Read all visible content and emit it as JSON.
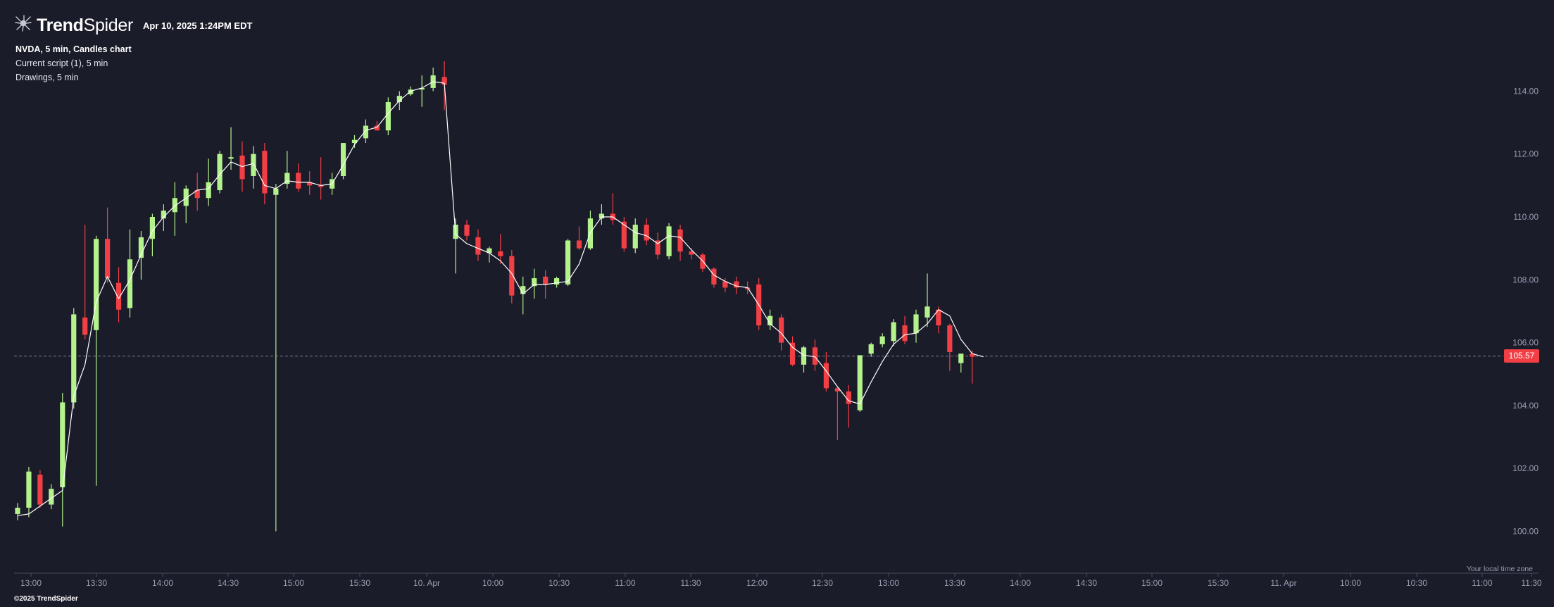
{
  "header": {
    "brand_trend": "Trend",
    "brand_spider": "Spider",
    "timestamp": "Apr 10, 2025 1:24PM EDT"
  },
  "legend": {
    "title": "NVDA, 5 min, Candles chart",
    "script": "Current script (1), 5 min",
    "drawings": "Drawings, 5 min"
  },
  "footer": {
    "copyright": "©2025 TrendSpider",
    "timezone_note": "Your local time zone"
  },
  "colors": {
    "background": "#1b1c2a",
    "up_candle": "#b4f28c",
    "down_candle": "#f23f45",
    "ma_line": "#ffffff",
    "axis_text": "#9a9bb0",
    "last_price_tag": "#f23f45"
  },
  "icons": {
    "logo": "spider-logo-icon"
  },
  "chart_data": {
    "type": "candlestick",
    "symbol": "NVDA",
    "interval": "5 min",
    "ylim": [
      99.5,
      115.0
    ],
    "y_ticks": [
      "100.00",
      "102.00",
      "104.00",
      "106.00",
      "108.00",
      "110.00",
      "112.00",
      "114.00"
    ],
    "x_ticks": [
      "13:00",
      "13:30",
      "14:00",
      "14:30",
      "15:00",
      "15:30",
      "10. Apr",
      "10:00",
      "10:30",
      "11:00",
      "11:30",
      "12:00",
      "12:30",
      "13:00",
      "13:30",
      "14:00",
      "14:30",
      "15:00",
      "15:30",
      "11. Apr",
      "10:00",
      "10:30",
      "11:00",
      "11:30"
    ],
    "last_price": "105.57",
    "candles": [
      {
        "o": 100.55,
        "h": 100.9,
        "l": 100.35,
        "c": 100.75
      },
      {
        "o": 100.75,
        "h": 102.05,
        "l": 100.45,
        "c": 101.9
      },
      {
        "o": 101.8,
        "h": 101.95,
        "l": 100.75,
        "c": 100.85
      },
      {
        "o": 100.85,
        "h": 101.5,
        "l": 100.7,
        "c": 101.35
      },
      {
        "o": 101.4,
        "h": 104.4,
        "l": 100.15,
        "c": 104.1
      },
      {
        "o": 104.1,
        "h": 107.1,
        "l": 103.9,
        "c": 106.9
      },
      {
        "o": 106.8,
        "h": 109.75,
        "l": 106.1,
        "c": 106.25
      },
      {
        "o": 106.4,
        "h": 109.4,
        "l": 101.45,
        "c": 109.3
      },
      {
        "o": 109.3,
        "h": 110.3,
        "l": 107.9,
        "c": 108.05
      },
      {
        "o": 107.9,
        "h": 108.4,
        "l": 106.65,
        "c": 107.05
      },
      {
        "o": 107.1,
        "h": 109.6,
        "l": 106.8,
        "c": 108.65
      },
      {
        "o": 108.7,
        "h": 109.55,
        "l": 108.0,
        "c": 109.35
      },
      {
        "o": 109.3,
        "h": 110.1,
        "l": 108.75,
        "c": 110.0
      },
      {
        "o": 109.95,
        "h": 110.4,
        "l": 109.55,
        "c": 110.2
      },
      {
        "o": 110.15,
        "h": 111.1,
        "l": 109.4,
        "c": 110.6
      },
      {
        "o": 110.35,
        "h": 111.0,
        "l": 109.8,
        "c": 110.9
      },
      {
        "o": 110.85,
        "h": 111.4,
        "l": 110.2,
        "c": 110.6
      },
      {
        "o": 110.6,
        "h": 111.85,
        "l": 110.35,
        "c": 111.1
      },
      {
        "o": 110.85,
        "h": 112.1,
        "l": 110.75,
        "c": 112.0
      },
      {
        "o": 111.85,
        "h": 112.85,
        "l": 111.5,
        "c": 111.9
      },
      {
        "o": 111.95,
        "h": 112.4,
        "l": 110.8,
        "c": 111.2
      },
      {
        "o": 111.3,
        "h": 112.25,
        "l": 110.9,
        "c": 112.0
      },
      {
        "o": 112.1,
        "h": 112.35,
        "l": 110.4,
        "c": 110.75
      },
      {
        "o": 110.7,
        "h": 111.05,
        "l": 100.0,
        "c": 110.9
      },
      {
        "o": 111.05,
        "h": 112.1,
        "l": 110.9,
        "c": 111.4
      },
      {
        "o": 111.4,
        "h": 111.7,
        "l": 110.8,
        "c": 110.9
      },
      {
        "o": 111.1,
        "h": 111.45,
        "l": 110.7,
        "c": 111.0
      },
      {
        "o": 111.0,
        "h": 111.9,
        "l": 110.55,
        "c": 110.95
      },
      {
        "o": 110.9,
        "h": 111.4,
        "l": 110.7,
        "c": 111.2
      },
      {
        "o": 111.3,
        "h": 112.35,
        "l": 111.2,
        "c": 112.35
      },
      {
        "o": 112.35,
        "h": 112.6,
        "l": 112.2,
        "c": 112.45
      },
      {
        "o": 112.5,
        "h": 113.1,
        "l": 112.35,
        "c": 112.9
      },
      {
        "o": 112.9,
        "h": 113.05,
        "l": 112.75,
        "c": 112.75
      },
      {
        "o": 112.75,
        "h": 113.8,
        "l": 112.6,
        "c": 113.65
      },
      {
        "o": 113.65,
        "h": 114.0,
        "l": 113.4,
        "c": 113.85
      },
      {
        "o": 113.9,
        "h": 114.15,
        "l": 113.85,
        "c": 114.05
      },
      {
        "o": 114.05,
        "h": 114.5,
        "l": 113.5,
        "c": 114.1
      },
      {
        "o": 114.1,
        "h": 114.75,
        "l": 114.0,
        "c": 114.5
      },
      {
        "o": 114.45,
        "h": 114.95,
        "l": 113.4,
        "c": 114.2
      },
      {
        "o": 109.3,
        "h": 109.95,
        "l": 108.2,
        "c": 109.75
      },
      {
        "o": 109.75,
        "h": 109.9,
        "l": 109.25,
        "c": 109.4
      },
      {
        "o": 109.35,
        "h": 109.6,
        "l": 108.6,
        "c": 108.8
      },
      {
        "o": 108.85,
        "h": 109.05,
        "l": 108.55,
        "c": 109.0
      },
      {
        "o": 108.9,
        "h": 109.45,
        "l": 108.5,
        "c": 108.75
      },
      {
        "o": 108.75,
        "h": 108.95,
        "l": 107.25,
        "c": 107.5
      },
      {
        "o": 107.55,
        "h": 108.1,
        "l": 106.9,
        "c": 107.8
      },
      {
        "o": 107.8,
        "h": 108.35,
        "l": 107.4,
        "c": 108.05
      },
      {
        "o": 108.1,
        "h": 108.3,
        "l": 107.4,
        "c": 107.85
      },
      {
        "o": 107.85,
        "h": 108.1,
        "l": 107.75,
        "c": 108.05
      },
      {
        "o": 107.85,
        "h": 109.3,
        "l": 107.8,
        "c": 109.25
      },
      {
        "o": 109.25,
        "h": 109.7,
        "l": 108.95,
        "c": 109.0
      },
      {
        "o": 109.0,
        "h": 110.2,
        "l": 108.95,
        "c": 109.95
      },
      {
        "o": 109.95,
        "h": 110.4,
        "l": 109.75,
        "c": 110.1
      },
      {
        "o": 110.1,
        "h": 110.75,
        "l": 109.75,
        "c": 109.9
      },
      {
        "o": 109.85,
        "h": 110.0,
        "l": 108.9,
        "c": 109.0
      },
      {
        "o": 109.0,
        "h": 109.95,
        "l": 108.85,
        "c": 109.75
      },
      {
        "o": 109.75,
        "h": 109.95,
        "l": 109.1,
        "c": 109.25
      },
      {
        "o": 109.25,
        "h": 109.5,
        "l": 108.65,
        "c": 108.8
      },
      {
        "o": 108.75,
        "h": 109.8,
        "l": 108.65,
        "c": 109.7
      },
      {
        "o": 109.6,
        "h": 109.75,
        "l": 108.6,
        "c": 108.9
      },
      {
        "o": 108.9,
        "h": 109.0,
        "l": 108.65,
        "c": 108.8
      },
      {
        "o": 108.8,
        "h": 108.85,
        "l": 108.25,
        "c": 108.35
      },
      {
        "o": 108.35,
        "h": 108.4,
        "l": 107.75,
        "c": 107.85
      },
      {
        "o": 107.95,
        "h": 108.05,
        "l": 107.6,
        "c": 107.75
      },
      {
        "o": 107.95,
        "h": 108.1,
        "l": 107.55,
        "c": 107.75
      },
      {
        "o": 107.75,
        "h": 107.95,
        "l": 107.55,
        "c": 107.7
      },
      {
        "o": 107.85,
        "h": 108.05,
        "l": 106.4,
        "c": 106.55
      },
      {
        "o": 106.55,
        "h": 107.05,
        "l": 106.4,
        "c": 106.85
      },
      {
        "o": 106.8,
        "h": 106.9,
        "l": 105.75,
        "c": 106.0
      },
      {
        "o": 106.0,
        "h": 106.2,
        "l": 105.25,
        "c": 105.3
      },
      {
        "o": 105.3,
        "h": 105.9,
        "l": 105.05,
        "c": 105.85
      },
      {
        "o": 105.85,
        "h": 106.1,
        "l": 105.1,
        "c": 105.3
      },
      {
        "o": 105.35,
        "h": 105.7,
        "l": 104.45,
        "c": 104.55
      },
      {
        "o": 104.55,
        "h": 104.6,
        "l": 102.9,
        "c": 104.45
      },
      {
        "o": 104.45,
        "h": 104.65,
        "l": 103.3,
        "c": 104.05
      },
      {
        "o": 103.85,
        "h": 105.6,
        "l": 103.8,
        "c": 105.6
      },
      {
        "o": 105.65,
        "h": 106.0,
        "l": 105.55,
        "c": 105.95
      },
      {
        "o": 105.95,
        "h": 106.3,
        "l": 105.85,
        "c": 106.2
      },
      {
        "o": 106.05,
        "h": 106.75,
        "l": 105.9,
        "c": 106.65
      },
      {
        "o": 106.55,
        "h": 106.85,
        "l": 105.95,
        "c": 106.05
      },
      {
        "o": 106.3,
        "h": 107.05,
        "l": 106.0,
        "c": 106.9
      },
      {
        "o": 106.8,
        "h": 108.2,
        "l": 106.5,
        "c": 107.15
      },
      {
        "o": 107.05,
        "h": 107.15,
        "l": 106.3,
        "c": 106.55
      },
      {
        "o": 106.55,
        "h": 106.6,
        "l": 105.1,
        "c": 105.7
      },
      {
        "o": 105.35,
        "h": 105.65,
        "l": 105.05,
        "c": 105.65
      },
      {
        "o": 105.65,
        "h": 105.75,
        "l": 104.7,
        "c": 105.55
      }
    ],
    "ma_line": [
      100.5,
      100.55,
      100.8,
      101.05,
      101.3,
      104.3,
      105.3,
      107.3,
      108.1,
      107.4,
      108.0,
      108.8,
      109.55,
      110.0,
      110.35,
      110.6,
      110.85,
      110.9,
      111.35,
      111.75,
      111.6,
      111.7,
      111.0,
      110.9,
      111.15,
      111.1,
      111.1,
      111.0,
      111.05,
      111.65,
      112.3,
      112.75,
      112.85,
      113.3,
      113.7,
      114.0,
      114.1,
      114.3,
      114.25,
      109.45,
      109.15,
      109.0,
      108.85,
      108.6,
      108.2,
      107.55,
      107.85,
      107.85,
      107.9,
      107.95,
      108.5,
      109.5,
      110.0,
      110.0,
      109.75,
      109.5,
      109.4,
      109.15,
      109.4,
      109.35,
      108.95,
      108.6,
      108.15,
      107.95,
      107.8,
      107.75,
      107.2,
      106.6,
      106.3,
      105.85,
      105.6,
      105.55,
      105.1,
      104.6,
      104.15,
      104.05,
      104.75,
      105.4,
      105.95,
      106.25,
      106.3,
      106.6,
      107.05,
      106.85,
      106.1,
      105.65,
      105.55
    ]
  }
}
